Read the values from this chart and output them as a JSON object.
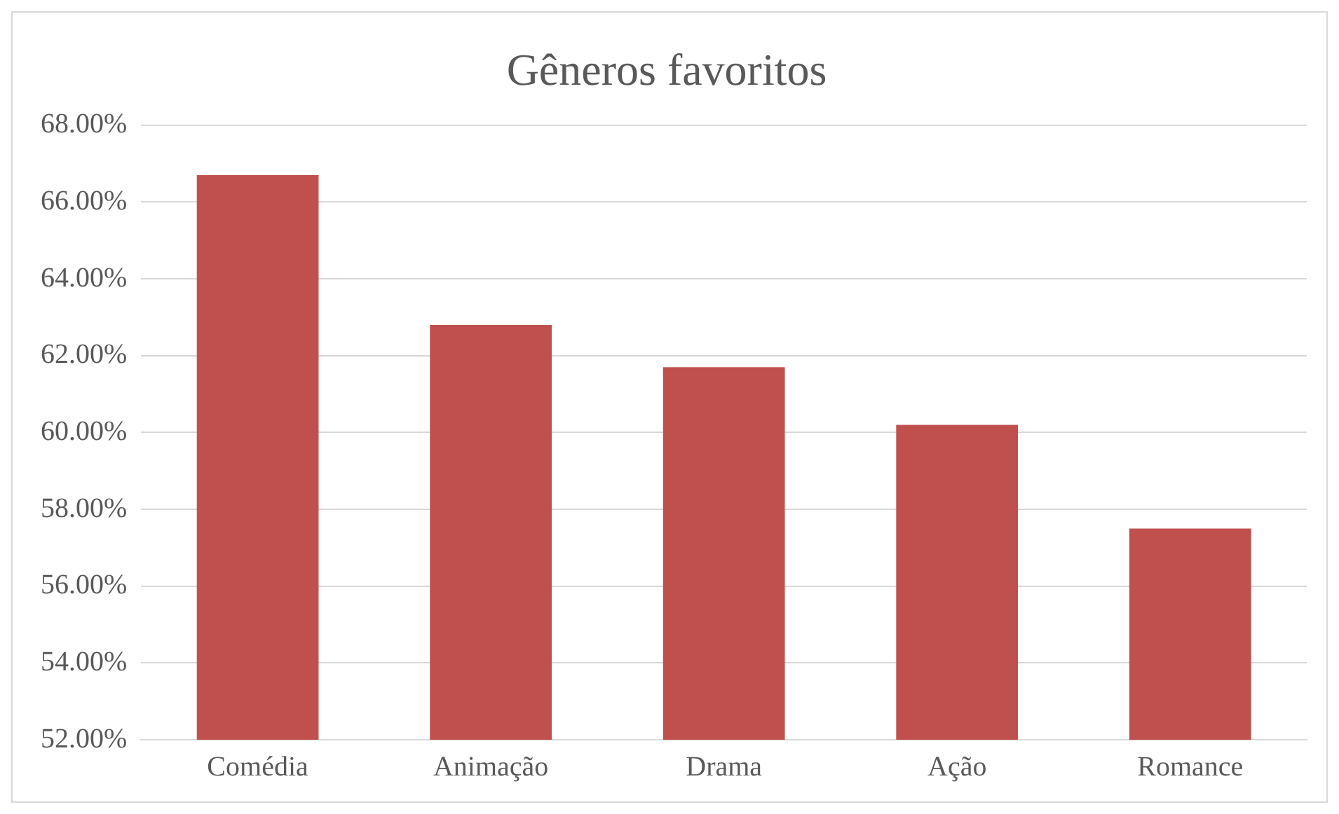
{
  "chart_data": {
    "type": "bar",
    "title": "Gêneros favoritos",
    "categories": [
      "Comédia",
      "Animação",
      "Drama",
      "Ação",
      "Romance"
    ],
    "values": [
      66.7,
      62.8,
      61.7,
      60.2,
      57.5
    ],
    "color": "#c0504d",
    "ylim": [
      52,
      68
    ],
    "yticks": [
      {
        "value": 52,
        "label": "52.00%"
      },
      {
        "value": 54,
        "label": "54.00%"
      },
      {
        "value": 56,
        "label": "56.00%"
      },
      {
        "value": 58,
        "label": "58.00%"
      },
      {
        "value": 60,
        "label": "60.00%"
      },
      {
        "value": 62,
        "label": "62.00%"
      },
      {
        "value": 64,
        "label": "64.00%"
      },
      {
        "value": 66,
        "label": "66.00%"
      },
      {
        "value": 68,
        "label": "68.00%"
      }
    ],
    "grid": "y",
    "legend": false
  }
}
